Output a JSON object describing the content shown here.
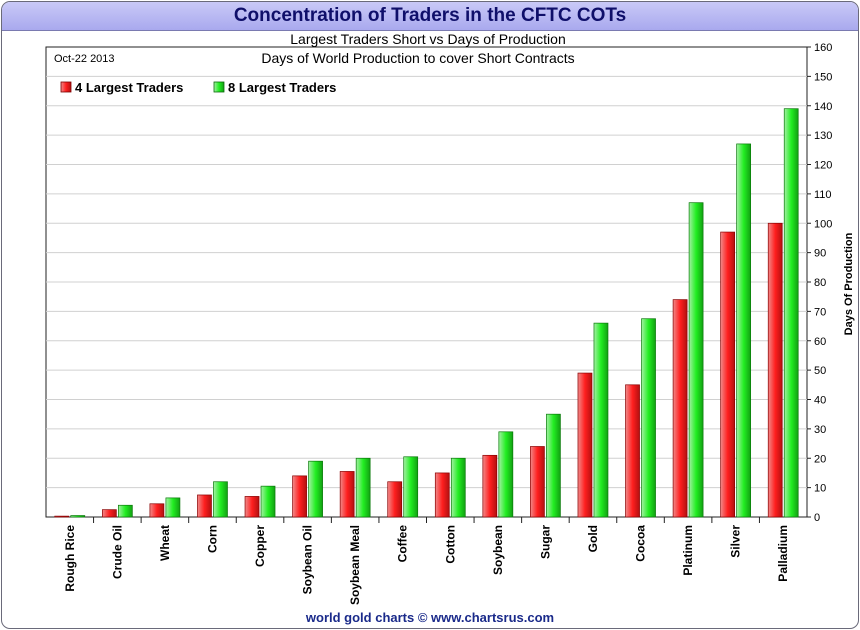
{
  "header": {
    "title": "Concentration of Traders in the CFTC COTs"
  },
  "footer": {
    "credit": "world gold charts © www.chartsrus.com"
  },
  "chart_data": {
    "type": "bar",
    "title": "Largest Traders Short vs Days of Production",
    "subtitle": "Days of World Production to cover Short Contracts",
    "date_label": "Oct-22 2013",
    "ylabel": "Days Of Production",
    "xlabel": "",
    "ylim": [
      0,
      160
    ],
    "y_ticks": [
      0,
      10,
      20,
      30,
      40,
      50,
      60,
      70,
      80,
      90,
      100,
      110,
      120,
      130,
      140,
      150,
      160
    ],
    "y_axis_side": "right",
    "grid": true,
    "legend_position": "top-left",
    "categories": [
      "Rough Rice",
      "Crude Oil",
      "Wheat",
      "Corn",
      "Copper",
      "Soybean Oil",
      "Soybean Meal",
      "Coffee",
      "Cotton",
      "Soybean",
      "Sugar",
      "Gold",
      "Cocoa",
      "Platinum",
      "Silver",
      "Palladium"
    ],
    "series": [
      {
        "name": "4 Largest Traders",
        "color": "#ff1f1f",
        "values": [
          0.3,
          2.5,
          4.5,
          7.5,
          7,
          14,
          15.5,
          12,
          15,
          21,
          24,
          49,
          45,
          74,
          97,
          100
        ]
      },
      {
        "name": "8 Largest Traders",
        "color": "#22ee22",
        "values": [
          0.5,
          4,
          6.5,
          12,
          10.5,
          19,
          20,
          20.5,
          20,
          29,
          35,
          66,
          67.5,
          107,
          127,
          139
        ]
      }
    ]
  }
}
